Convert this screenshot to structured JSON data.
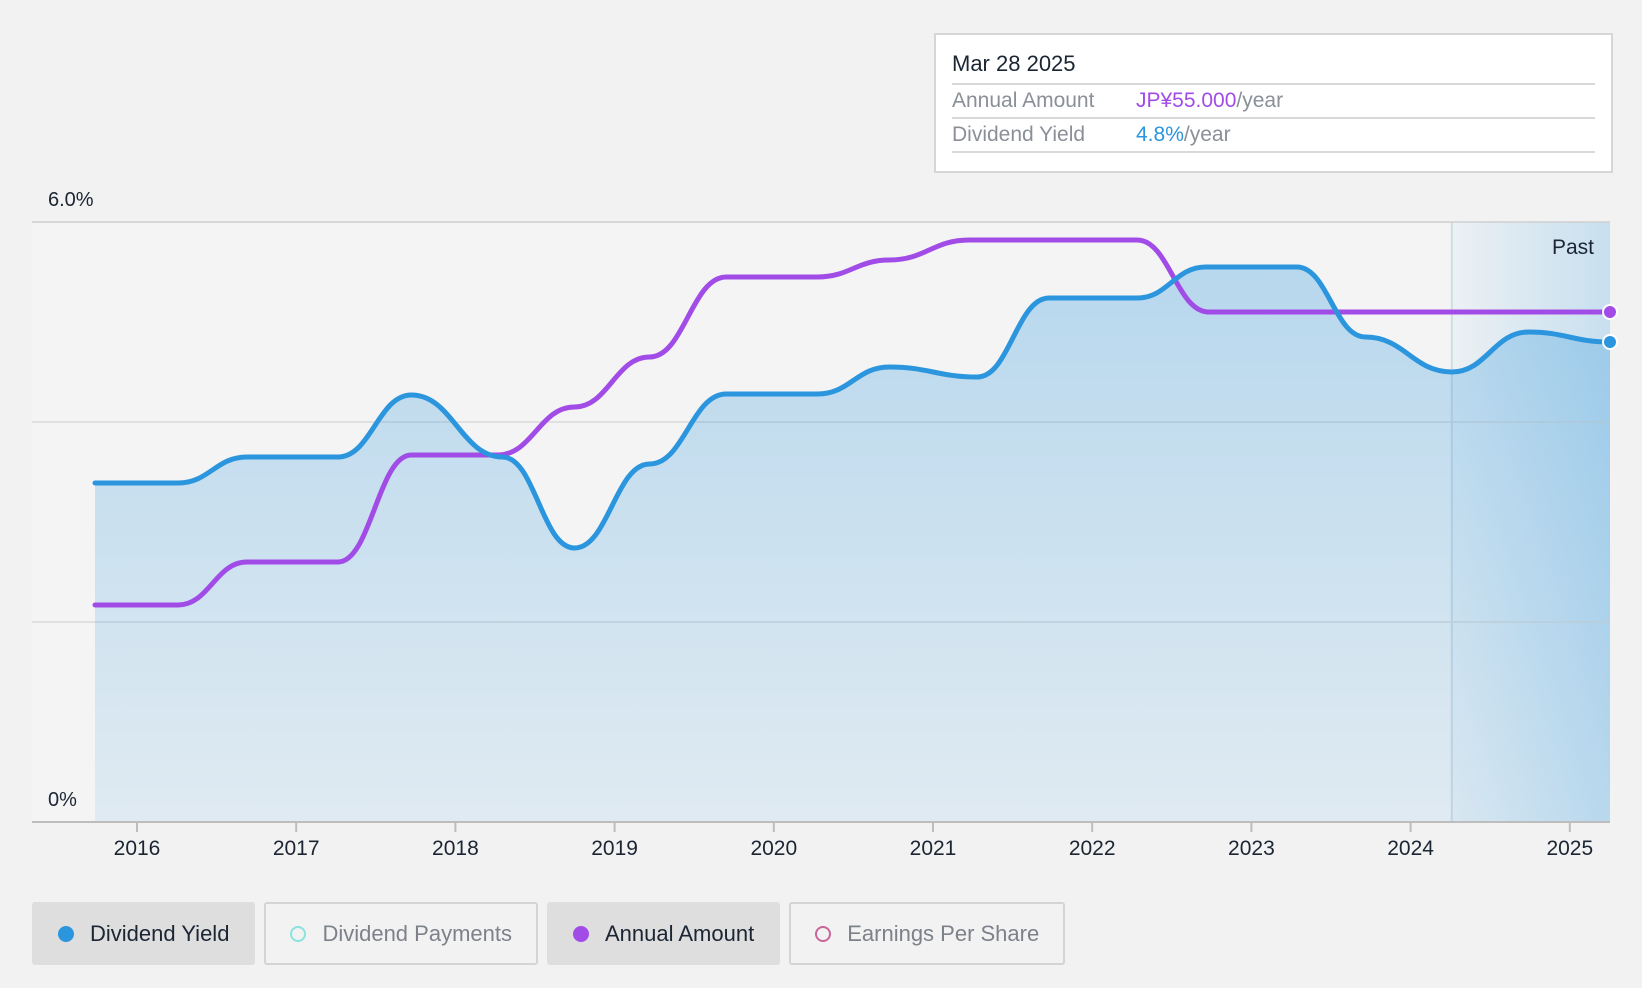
{
  "tooltip": {
    "date": "Mar 28 2025",
    "annual_amount_label": "Annual Amount",
    "annual_amount_value": "JP¥55.000",
    "annual_amount_unit": "/year",
    "dividend_yield_label": "Dividend Yield",
    "dividend_yield_value": "4.8%",
    "dividend_yield_unit": "/year"
  },
  "legend": [
    {
      "label": "Dividend Yield",
      "active": true,
      "color": "#2b95dd",
      "style": "filled"
    },
    {
      "label": "Dividend Payments",
      "active": false,
      "color": "#8ae3dc",
      "style": "hollow"
    },
    {
      "label": "Annual Amount",
      "active": true,
      "color": "#a24ce8",
      "style": "filled"
    },
    {
      "label": "Earnings Per Share",
      "active": false,
      "color": "#c96597",
      "style": "hollow"
    }
  ],
  "colors": {
    "yield": "#2b95dd",
    "amount": "#a24ce8",
    "background": "#f2f2f2"
  },
  "chart_data": {
    "type": "line",
    "title": "",
    "xlabel": "",
    "ylabel": "",
    "y_tick_labels": [
      "0%",
      "6.0%"
    ],
    "ylim": [
      0,
      6.0
    ],
    "x_ticks": [
      "2016",
      "2017",
      "2018",
      "2019",
      "2020",
      "2021",
      "2022",
      "2023",
      "2024",
      "2025"
    ],
    "xlim": [
      2015.35,
      2025.25
    ],
    "past_label": "Past",
    "past_region_start": 2024.24,
    "grid": true,
    "series": [
      {
        "name": "Dividend Yield",
        "color": "#2b95dd",
        "area": true,
        "points": [
          [
            2015.75,
            3.39
          ],
          [
            2016.27,
            3.39
          ],
          [
            2016.7,
            3.65
          ],
          [
            2017.27,
            3.65
          ],
          [
            2017.73,
            4.27
          ],
          [
            2018.3,
            3.65
          ],
          [
            2018.75,
            2.74
          ],
          [
            2019.22,
            3.58
          ],
          [
            2019.7,
            4.28
          ],
          [
            2020.27,
            4.28
          ],
          [
            2020.72,
            4.55
          ],
          [
            2021.27,
            4.45
          ],
          [
            2021.72,
            5.24
          ],
          [
            2022.27,
            5.24
          ],
          [
            2022.7,
            5.55
          ],
          [
            2023.27,
            5.55
          ],
          [
            2023.7,
            4.85
          ],
          [
            2024.24,
            4.5
          ],
          [
            2024.72,
            4.9
          ],
          [
            2025.23,
            4.8
          ]
        ]
      },
      {
        "name": "Annual Amount",
        "color": "#a24ce8",
        "area": false,
        "points": [
          [
            2015.75,
            2.17
          ],
          [
            2016.27,
            2.17
          ],
          [
            2016.7,
            2.6
          ],
          [
            2017.27,
            2.6
          ],
          [
            2017.73,
            3.67
          ],
          [
            2018.27,
            3.67
          ],
          [
            2018.75,
            4.15
          ],
          [
            2019.22,
            4.65
          ],
          [
            2019.7,
            5.45
          ],
          [
            2020.27,
            5.45
          ],
          [
            2020.72,
            5.62
          ],
          [
            2021.22,
            5.82
          ],
          [
            2022.27,
            5.82
          ],
          [
            2022.72,
            5.1
          ],
          [
            2023.27,
            5.1
          ],
          [
            2025.23,
            5.1
          ]
        ]
      }
    ]
  }
}
